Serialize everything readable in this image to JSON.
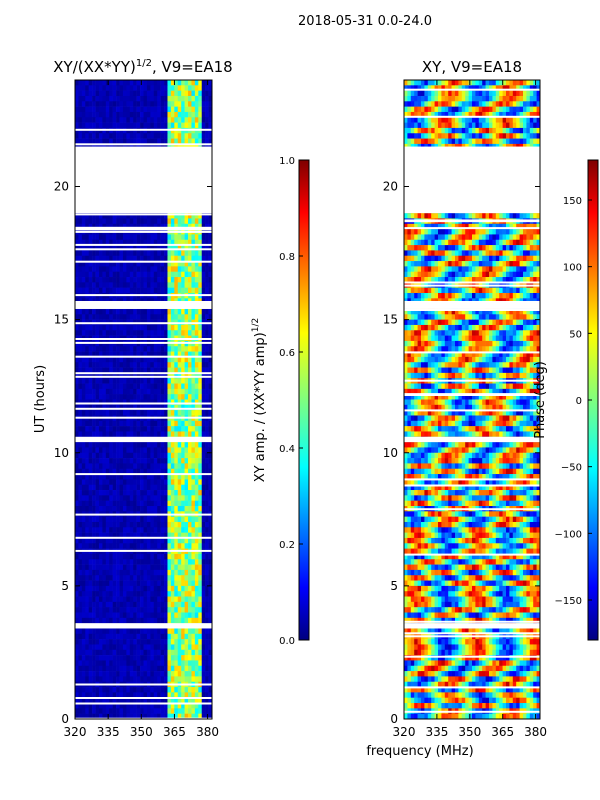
{
  "page_title": "2018-05-31 0.0-24.0",
  "chart_data": [
    {
      "type": "heatmap",
      "title": "XY/(XX*YY)",
      "title_superscript": "1/2",
      "title_suffix": ", V9=EA18",
      "ylabel": "UT (hours)",
      "xlim": [
        320,
        382
      ],
      "ylim": [
        0,
        24
      ],
      "xticks": [
        320,
        335,
        350,
        365,
        380
      ],
      "yticks": [
        0,
        5,
        10,
        15,
        20
      ],
      "data_gaps_hours": [
        [
          19.0,
          21.5
        ],
        [
          15.4,
          15.7
        ],
        [
          10.4,
          10.6
        ],
        [
          3.4,
          3.6
        ]
      ],
      "colormap": "jet",
      "colorbar": {
        "label": "XY amp. / (XX*YY amp)",
        "label_superscript": "1/2",
        "range": [
          0.0,
          1.0
        ],
        "ticks": [
          "0.0",
          "0.2",
          "0.4",
          "0.6",
          "0.8",
          "1.0"
        ]
      }
    },
    {
      "type": "heatmap",
      "title": "XY, V9=EA18",
      "ylabel": "",
      "xlim": [
        320,
        382
      ],
      "ylim": [
        0,
        24
      ],
      "xticks": [
        320,
        335,
        350,
        365,
        380
      ],
      "yticks": [
        0,
        5,
        10,
        15,
        20
      ],
      "data_gaps_hours": [
        [
          19.0,
          21.5
        ],
        [
          15.4,
          15.7
        ],
        [
          10.4,
          10.6
        ],
        [
          3.4,
          3.6
        ]
      ],
      "colormap": "jet",
      "colorbar": {
        "label": "Phase (deg)",
        "range": [
          -180,
          180
        ],
        "ticks": [
          "150",
          "100",
          "50",
          "0",
          "−50",
          "−100",
          "−150"
        ],
        "tick_values": [
          150,
          100,
          50,
          0,
          -50,
          -100,
          -150
        ]
      }
    }
  ],
  "xlabel": "frequency (MHz)",
  "colors": {
    "jet": [
      "#00007f",
      "#0000ff",
      "#007fff",
      "#00ffff",
      "#7fff7f",
      "#ffff00",
      "#ff7f00",
      "#ff0000",
      "#7f0000"
    ]
  }
}
